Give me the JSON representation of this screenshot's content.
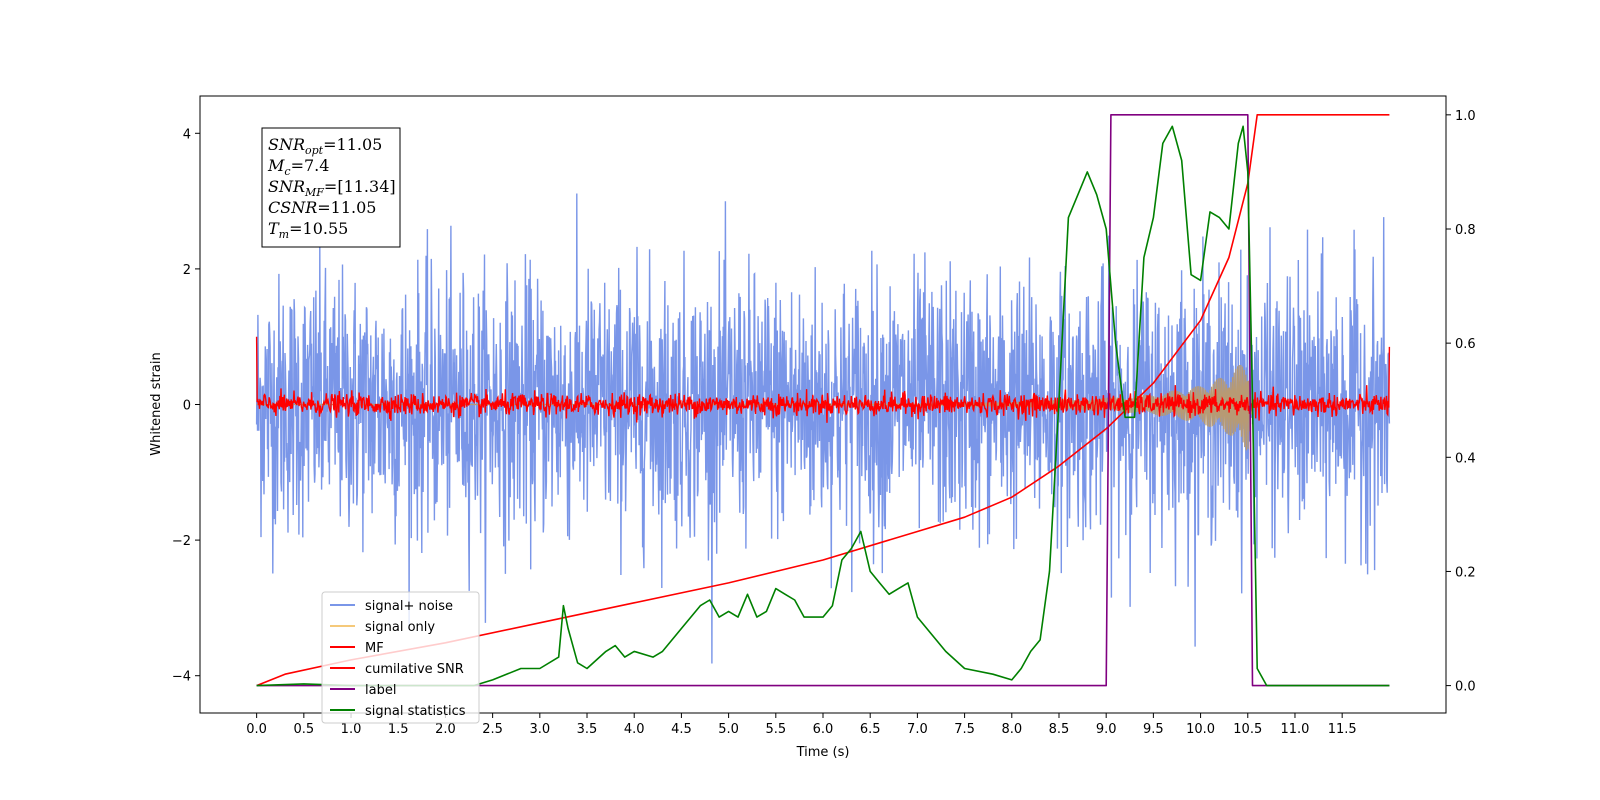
{
  "chart_data": {
    "type": "line",
    "xlabel": "Time (s)",
    "ylabel": "Whitened strain",
    "xlim": [
      -0.6,
      12.6
    ],
    "ylim_left": [
      -4.55,
      4.55
    ],
    "ylim_right": [
      -0.048,
      1.033
    ],
    "x_ticks": [
      0.0,
      0.5,
      1.0,
      1.5,
      2.0,
      2.5,
      3.0,
      3.5,
      4.0,
      4.5,
      5.0,
      5.5,
      6.0,
      6.5,
      7.0,
      7.5,
      8.0,
      8.5,
      9.0,
      9.5,
      10.0,
      10.5,
      11.0,
      11.5
    ],
    "x_tick_labels": [
      "0.0",
      "0.5",
      "1.0",
      "1.5",
      "2.0",
      "2.5",
      "3.0",
      "3.5",
      "4.0",
      "4.5",
      "5.0",
      "5.5",
      "6.0",
      "6.5",
      "7.0",
      "7.5",
      "8.0",
      "8.5",
      "9.0",
      "9.5",
      "10.0",
      "10.5",
      "11.0",
      "11.5"
    ],
    "y_left_ticks": [
      -4,
      -2,
      0,
      2,
      4
    ],
    "y_left_tick_labels": [
      "−4",
      "−2",
      "0",
      "2",
      "4"
    ],
    "y_right_ticks": [
      0.0,
      0.2,
      0.4,
      0.6,
      0.8,
      1.0
    ],
    "y_right_tick_labels": [
      "0.0",
      "0.2",
      "0.4",
      "0.6",
      "0.8",
      "1.0"
    ],
    "legend_placement": "lower-left",
    "grid": false,
    "series": [
      {
        "name": "signal+ noise",
        "color": "#7a96e8",
        "axis": "left",
        "style": "noisy",
        "x_range": [
          0.0,
          12.0
        ],
        "noise_std": 0.95,
        "approx_range": [
          -4.1,
          4.1
        ]
      },
      {
        "name": "signal only",
        "color": "#f5c97a",
        "axis": "left",
        "style": "chirp-envelope",
        "x_range": [
          0.0,
          10.55
        ],
        "envelope": {
          "x": [
            0.0,
            7.0,
            8.0,
            9.0,
            9.5,
            10.0,
            10.3,
            10.5,
            10.55
          ],
          "amp": [
            0.0,
            0.01,
            0.04,
            0.1,
            0.15,
            0.28,
            0.45,
            0.7,
            0.0
          ]
        }
      },
      {
        "name": "MF",
        "color": "#ff0000",
        "axis": "left",
        "style": "noisy",
        "x_range": [
          0.0,
          12.0
        ],
        "noise_std": 0.08,
        "endpoints": [
          1.0,
          0.85
        ]
      },
      {
        "name": "cumilative SNR",
        "color": "#ff0000",
        "axis": "right",
        "x": [
          0.0,
          0.3,
          1.0,
          2.0,
          3.0,
          4.0,
          5.0,
          6.0,
          7.0,
          7.5,
          8.0,
          8.5,
          9.0,
          9.5,
          10.0,
          10.3,
          10.5,
          10.6,
          12.0
        ],
        "values": [
          0.0,
          0.02,
          0.045,
          0.075,
          0.11,
          0.145,
          0.18,
          0.22,
          0.27,
          0.295,
          0.33,
          0.385,
          0.45,
          0.53,
          0.64,
          0.75,
          0.88,
          1.0,
          1.0
        ]
      },
      {
        "name": "label",
        "color": "#800080",
        "axis": "right",
        "x": [
          0.0,
          9.0,
          9.05,
          10.5,
          10.55,
          12.0
        ],
        "values": [
          0.0,
          0.0,
          1.0,
          1.0,
          0.0,
          0.0
        ]
      },
      {
        "name": "signal statistics",
        "color": "#008000",
        "axis": "right",
        "x": [
          0.0,
          0.5,
          1.0,
          2.0,
          2.3,
          2.5,
          2.8,
          3.0,
          3.2,
          3.25,
          3.3,
          3.4,
          3.5,
          3.7,
          3.8,
          3.9,
          4.0,
          4.2,
          4.3,
          4.4,
          4.5,
          4.7,
          4.8,
          4.9,
          5.0,
          5.1,
          5.2,
          5.3,
          5.4,
          5.5,
          5.6,
          5.7,
          5.8,
          6.0,
          6.1,
          6.2,
          6.3,
          6.4,
          6.5,
          6.6,
          6.7,
          6.8,
          6.9,
          7.0,
          7.1,
          7.3,
          7.5,
          7.8,
          8.0,
          8.1,
          8.2,
          8.3,
          8.4,
          8.5,
          8.6,
          8.7,
          8.8,
          8.9,
          9.0,
          9.1,
          9.2,
          9.3,
          9.4,
          9.5,
          9.6,
          9.7,
          9.8,
          9.9,
          10.0,
          10.1,
          10.2,
          10.3,
          10.4,
          10.45,
          10.5,
          10.55,
          10.6,
          10.7,
          12.0
        ],
        "values": [
          0.0,
          0.003,
          0.0,
          0.0,
          0.0,
          0.01,
          0.03,
          0.03,
          0.05,
          0.14,
          0.1,
          0.04,
          0.03,
          0.06,
          0.07,
          0.05,
          0.06,
          0.05,
          0.06,
          0.08,
          0.1,
          0.14,
          0.15,
          0.12,
          0.13,
          0.12,
          0.16,
          0.12,
          0.13,
          0.17,
          0.16,
          0.15,
          0.12,
          0.12,
          0.14,
          0.22,
          0.24,
          0.27,
          0.2,
          0.18,
          0.16,
          0.17,
          0.18,
          0.12,
          0.1,
          0.06,
          0.03,
          0.02,
          0.01,
          0.03,
          0.06,
          0.08,
          0.2,
          0.5,
          0.82,
          0.86,
          0.9,
          0.86,
          0.8,
          0.6,
          0.47,
          0.47,
          0.75,
          0.82,
          0.95,
          0.98,
          0.92,
          0.72,
          0.71,
          0.83,
          0.82,
          0.8,
          0.95,
          0.98,
          0.9,
          0.5,
          0.03,
          0.0,
          0.0
        ]
      }
    ]
  },
  "info_box": {
    "snr_opt": "=11.05",
    "mc": "=7.4",
    "snr_mf": "=[11.34]",
    "csnr": "=11.05",
    "tm": "=10.55"
  }
}
